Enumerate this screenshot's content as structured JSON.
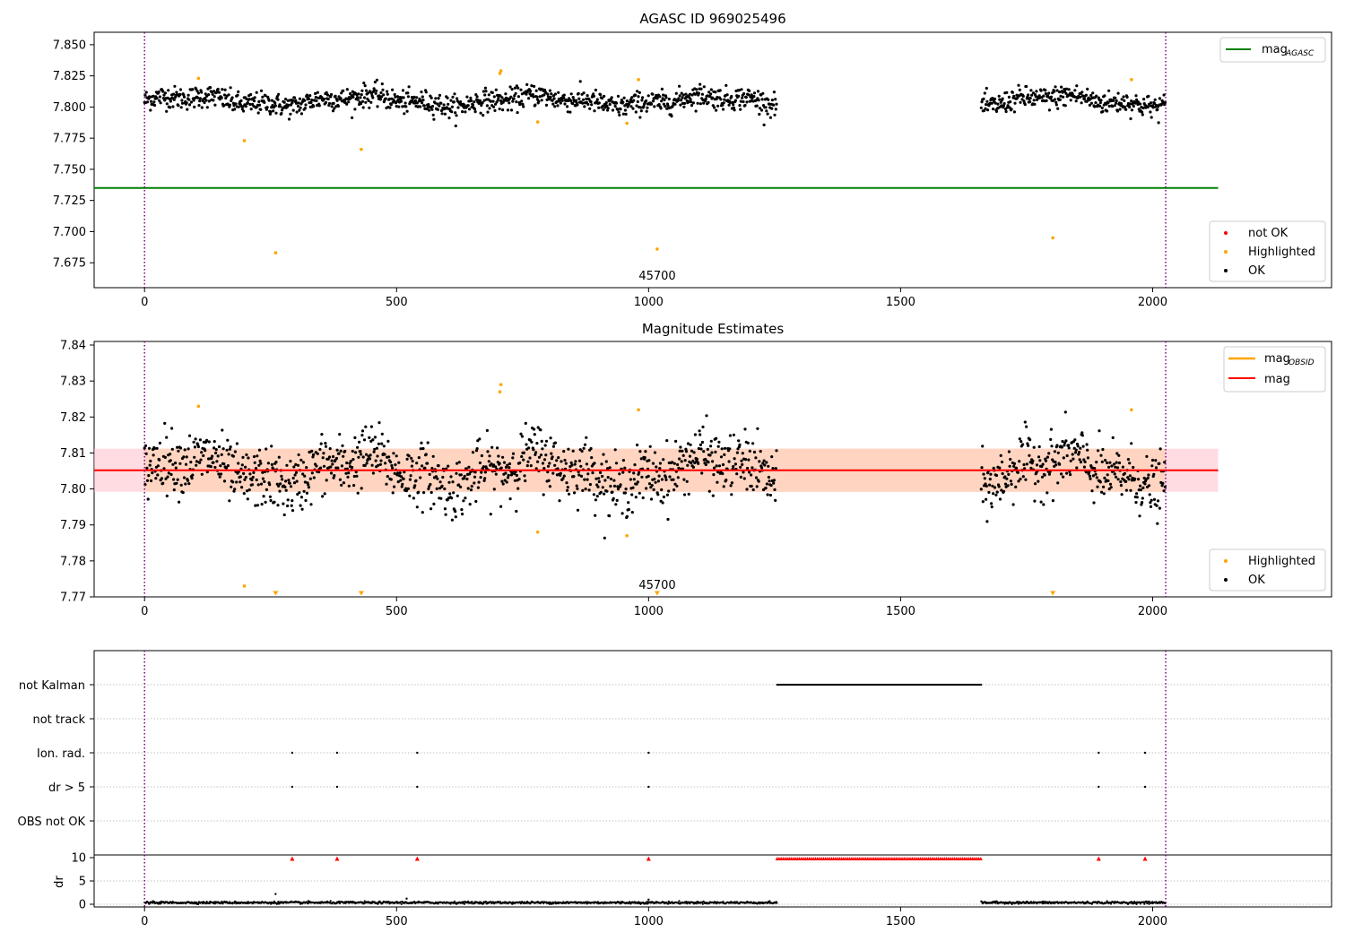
{
  "chart_data": [
    {
      "type": "scatter",
      "title": "AGASC ID 969025496",
      "annotation": "45700",
      "xlim": [
        -100,
        2355
      ],
      "ylim": [
        7.655,
        7.86
      ],
      "x_ticks": [
        "0",
        "500",
        "1000",
        "1500",
        "2000"
      ],
      "y_ticks": [
        "7.850",
        "7.825",
        "7.800",
        "7.775",
        "7.750",
        "7.725",
        "7.700",
        "7.675"
      ],
      "vlines": [
        0,
        2026
      ],
      "mag_agasc": {
        "value": 7.735,
        "x_range": [
          -100,
          2130
        ]
      },
      "legend_line": {
        "label": "mag",
        "sub": "AGASC"
      },
      "legend_points": [
        "not OK",
        "Highlighted",
        "OK"
      ],
      "ok_segments": [
        {
          "x_range": [
            0,
            1255
          ],
          "center": 7.805,
          "spread": 0.006
        },
        {
          "x_range": [
            1660,
            2026
          ],
          "center": 7.805,
          "spread": 0.006
        }
      ],
      "highlighted": [
        [
          107,
          7.823
        ],
        [
          198,
          7.773
        ],
        [
          260,
          7.683
        ],
        [
          430,
          7.766
        ],
        [
          705,
          7.827
        ],
        [
          707,
          7.829
        ],
        [
          780,
          7.788
        ],
        [
          957,
          7.787
        ],
        [
          980,
          7.822
        ],
        [
          1017,
          7.686
        ],
        [
          1802,
          7.695
        ],
        [
          1958,
          7.822
        ]
      ]
    },
    {
      "type": "scatter",
      "title": "Magnitude Estimates",
      "annotation": "45700",
      "xlim": [
        -100,
        2355
      ],
      "ylim": [
        7.77,
        7.841
      ],
      "x_ticks": [
        "0",
        "500",
        "1000",
        "1500",
        "2000"
      ],
      "y_ticks": [
        "7.84",
        "7.83",
        "7.82",
        "7.81",
        "7.80",
        "7.79",
        "7.78",
        "7.77"
      ],
      "vlines": [
        0,
        2026
      ],
      "mag": {
        "value": 7.8052,
        "band": [
          7.7992,
          7.8112
        ],
        "x_range": [
          -100,
          2130
        ]
      },
      "mag_obsid_band": {
        "band": [
          7.7992,
          7.8112
        ],
        "x_range": [
          0,
          2026
        ]
      },
      "legend_lines": [
        {
          "label": "mag",
          "sub": "OBSID"
        },
        {
          "label": "mag",
          "sub": ""
        }
      ],
      "legend_points": [
        "Highlighted",
        "OK"
      ],
      "ok_segments": [
        {
          "x_range": [
            0,
            1255
          ],
          "center": 7.805,
          "spread": 0.0055
        },
        {
          "x_range": [
            1660,
            2026
          ],
          "center": 7.805,
          "spread": 0.0055
        }
      ],
      "highlighted": [
        [
          107,
          7.823
        ],
        [
          198,
          7.773
        ],
        [
          705,
          7.827
        ],
        [
          707,
          7.829
        ],
        [
          780,
          7.788
        ],
        [
          957,
          7.787
        ],
        [
          980,
          7.822
        ],
        [
          1958,
          7.822
        ]
      ],
      "below_range_markers": [
        260,
        430,
        1017,
        1802
      ]
    },
    {
      "type": "scatter",
      "title": "",
      "categories": [
        "not Kalman",
        "not track",
        "Ion. rad.",
        "dr > 5",
        "OBS not OK"
      ],
      "xlim": [
        -100,
        2355
      ],
      "vlines": [
        0,
        2026
      ],
      "not_kalman_range": [
        1255,
        1660
      ],
      "ion_rad_x": [
        293,
        382,
        541,
        1000,
        1893,
        1985
      ],
      "dr_gt5_x": [
        293,
        382,
        541,
        1000,
        1893,
        1985
      ]
    },
    {
      "type": "scatter",
      "title": "",
      "ylabel": "dr",
      "xlim": [
        -100,
        2355
      ],
      "ylim": [
        0,
        10
      ],
      "x_ticks": [
        "0",
        "500",
        "1000",
        "1500",
        "2000"
      ],
      "y_ticks": [
        "10",
        "5",
        "0"
      ],
      "vlines": [
        0,
        2026
      ],
      "dr_segments": [
        [
          0,
          1255
        ],
        [
          1660,
          2026
        ]
      ],
      "dr_outliers": [
        [
          260,
          2.2
        ],
        [
          520,
          1.2
        ],
        [
          1000,
          1.0
        ]
      ],
      "capped_markers_range": [
        1255,
        1660
      ],
      "capped_markers_x": [
        293,
        382,
        541,
        1000,
        1893,
        1985
      ]
    }
  ],
  "colors": {
    "ok": "#000000",
    "highlighted": "#ffa500",
    "not_ok": "#ff0000",
    "mag_agasc": "#008000",
    "mag": "#ff0000",
    "mag_obsid": "#ffa500",
    "vline": "#800080",
    "band_pink": "#ffc0cb",
    "band_orange": "#ffd2b4"
  }
}
